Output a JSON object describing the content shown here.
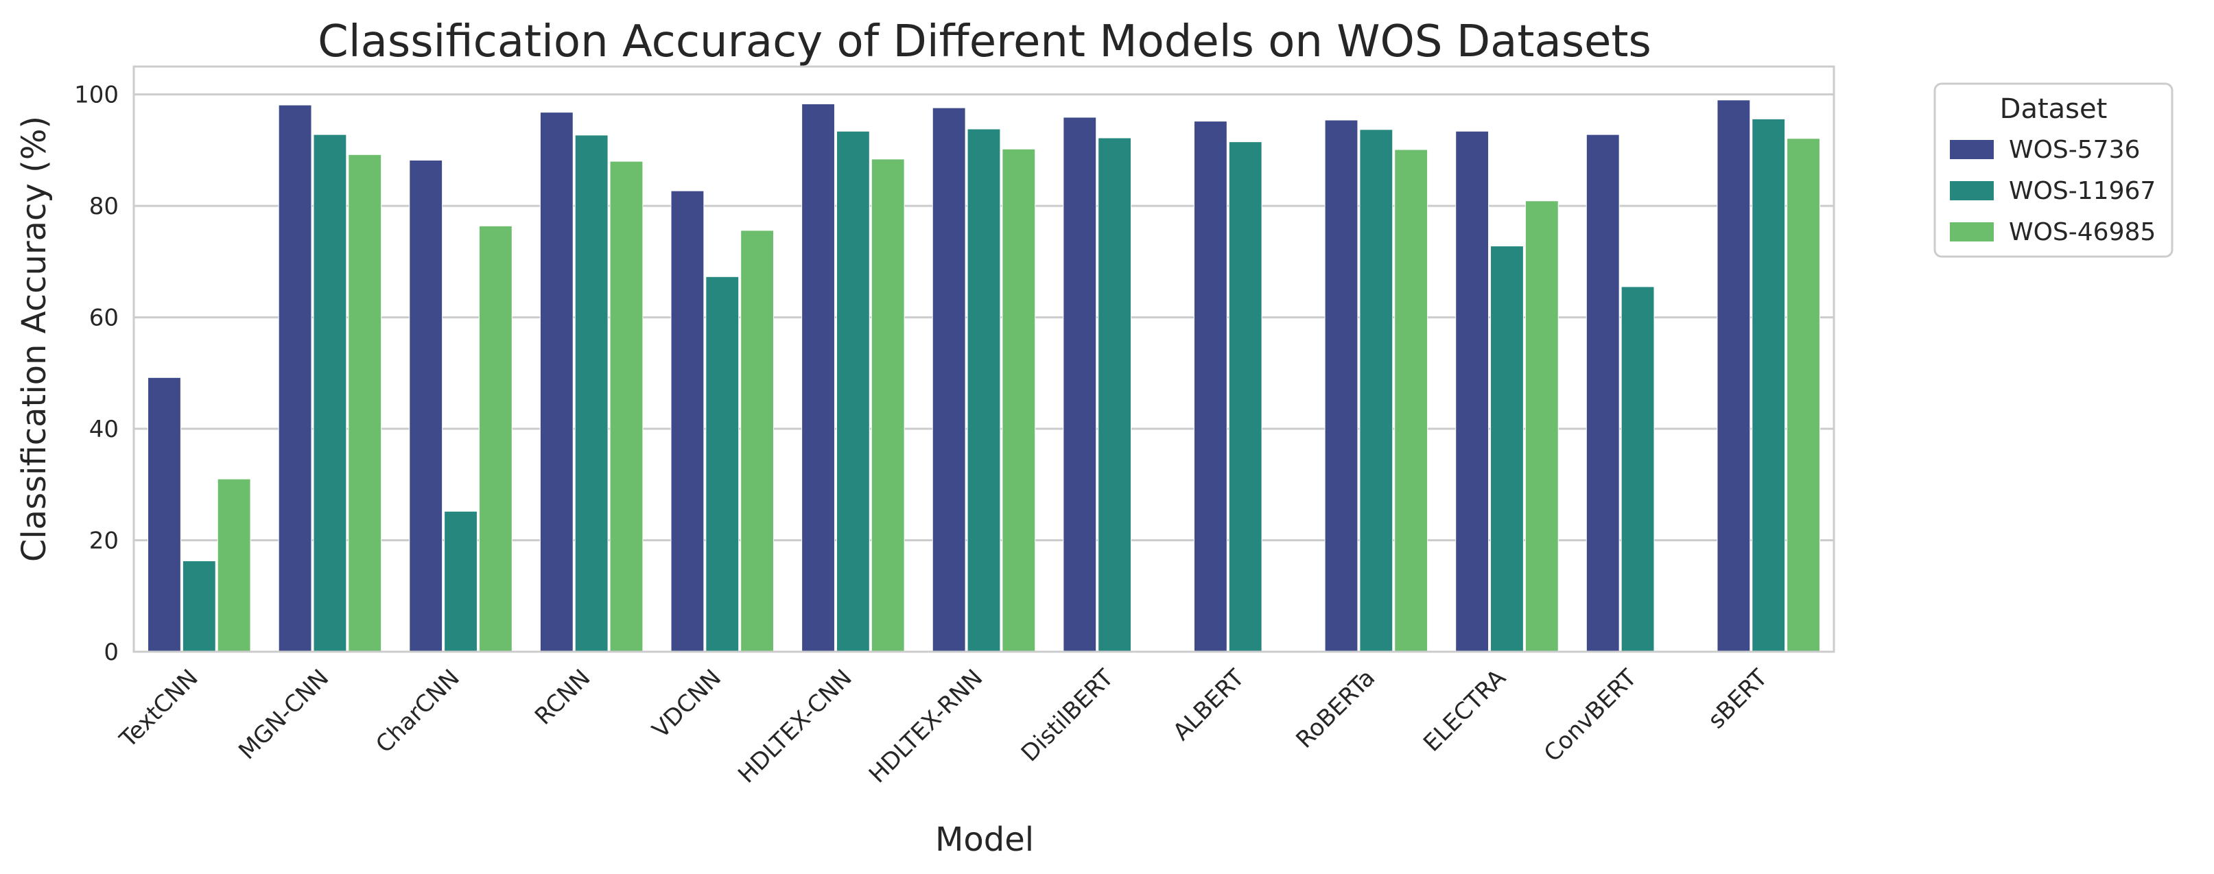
{
  "chart_data": {
    "type": "bar",
    "title": "Classification Accuracy of Different Models on WOS Datasets",
    "xlabel": "Model",
    "ylabel": "Classification Accuracy (%)",
    "ylim": [
      0,
      105
    ],
    "yticks": [
      0,
      20,
      40,
      60,
      80,
      100
    ],
    "grid": true,
    "categories": [
      "TextCNN",
      "MGN-CNN",
      "CharCNN",
      "RCNN",
      "VDCNN",
      "HDLTEX-CNN",
      "HDLTEX-RNN",
      "DistilBERT",
      "ALBERT",
      "RoBERTa",
      "ELECTRA",
      "ConvBERT",
      "sBERT"
    ],
    "legend": {
      "title": "Dataset",
      "placement": "outside-top-right"
    },
    "series": [
      {
        "name": "WOS-5736",
        "color": "#3e4a89",
        "values": [
          49.2,
          98.1,
          88.2,
          96.8,
          82.7,
          98.3,
          97.6,
          95.9,
          95.2,
          95.4,
          93.4,
          92.8,
          99.0
        ]
      },
      {
        "name": "WOS-11967",
        "color": "#26877f",
        "values": [
          16.3,
          92.8,
          25.2,
          92.7,
          67.3,
          93.4,
          93.8,
          92.2,
          91.5,
          93.7,
          72.8,
          65.5,
          95.6
        ]
      },
      {
        "name": "WOS-46985",
        "color": "#6cbd6c",
        "values": [
          31.0,
          89.2,
          76.4,
          88.0,
          75.6,
          88.4,
          90.2,
          null,
          null,
          90.1,
          80.9,
          null,
          92.1
        ]
      }
    ]
  }
}
